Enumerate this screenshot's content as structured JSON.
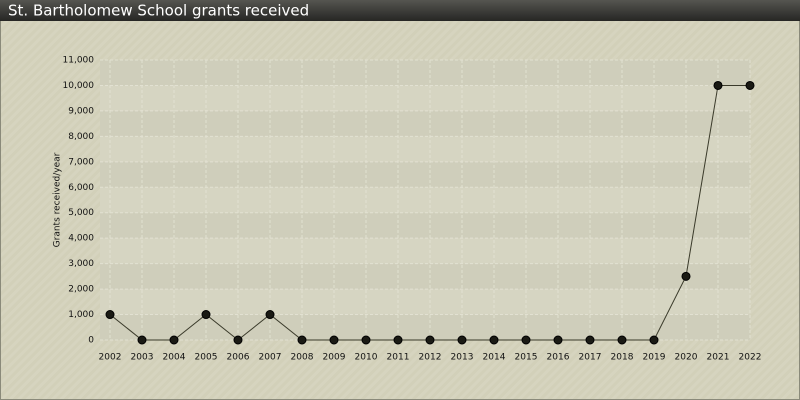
{
  "chart_data": {
    "type": "line",
    "title": "St. Bartholomew School grants received",
    "y_label": "Grants received/year",
    "categories": [
      "2002",
      "2003",
      "2004",
      "2005",
      "2006",
      "2007",
      "2008",
      "2009",
      "2010",
      "2011",
      "2012",
      "2013",
      "2014",
      "2015",
      "2016",
      "2017",
      "2018",
      "2019",
      "2020",
      "2021",
      "2022"
    ],
    "values": [
      1000,
      0,
      0,
      1000,
      0,
      1000,
      0,
      0,
      0,
      0,
      0,
      0,
      0,
      0,
      0,
      0,
      0,
      0,
      2500,
      10000,
      10000
    ],
    "color": "#3a3a2a",
    "ylim": [
      0,
      11000
    ],
    "yticks": [
      0,
      {
        "value": 1000,
        "label": "1,000"
      },
      {
        "value": 2000,
        "label": "2,000"
      },
      {
        "value": 3000,
        "label": "3,000"
      },
      {
        "value": 4000,
        "label": "4,000"
      },
      {
        "value": 5000,
        "label": "5,000"
      },
      {
        "value": 6000,
        "label": "6,000"
      },
      {
        "value": 7000,
        "label": "7,000"
      },
      {
        "value": 8000,
        "label": "8,000"
      },
      {
        "value": 9000,
        "label": "9,000"
      },
      {
        "value": 10000,
        "label": "10,000"
      },
      {
        "value": 11000,
        "label": "11,000"
      }
    ],
    "grid": true
  }
}
